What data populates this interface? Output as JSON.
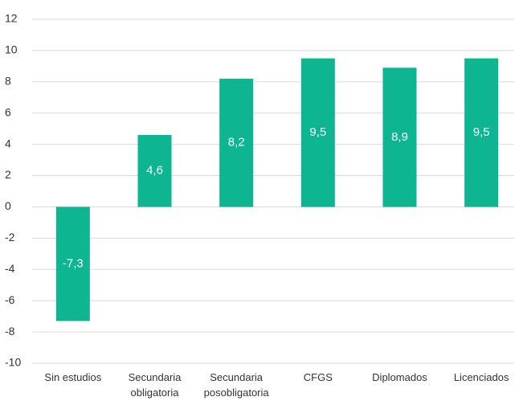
{
  "chart_data": {
    "type": "bar",
    "categories": [
      "Sin estudios",
      "Secundaria\nobligatoria",
      "Secundaria\nposobligatoria",
      "CFGS",
      "Diplomados",
      "Licenciados"
    ],
    "values": [
      -7.3,
      4.6,
      8.2,
      9.5,
      8.9,
      9.5
    ],
    "value_labels": [
      "-7,3",
      "4,6",
      "8,2",
      "9,5",
      "8,9",
      "9,5"
    ],
    "color": "#0db591",
    "ylim": [
      -10,
      12
    ],
    "yticks": [
      -10,
      -8,
      -6,
      -4,
      -2,
      0,
      2,
      4,
      6,
      8,
      10,
      12
    ],
    "grid": true
  }
}
